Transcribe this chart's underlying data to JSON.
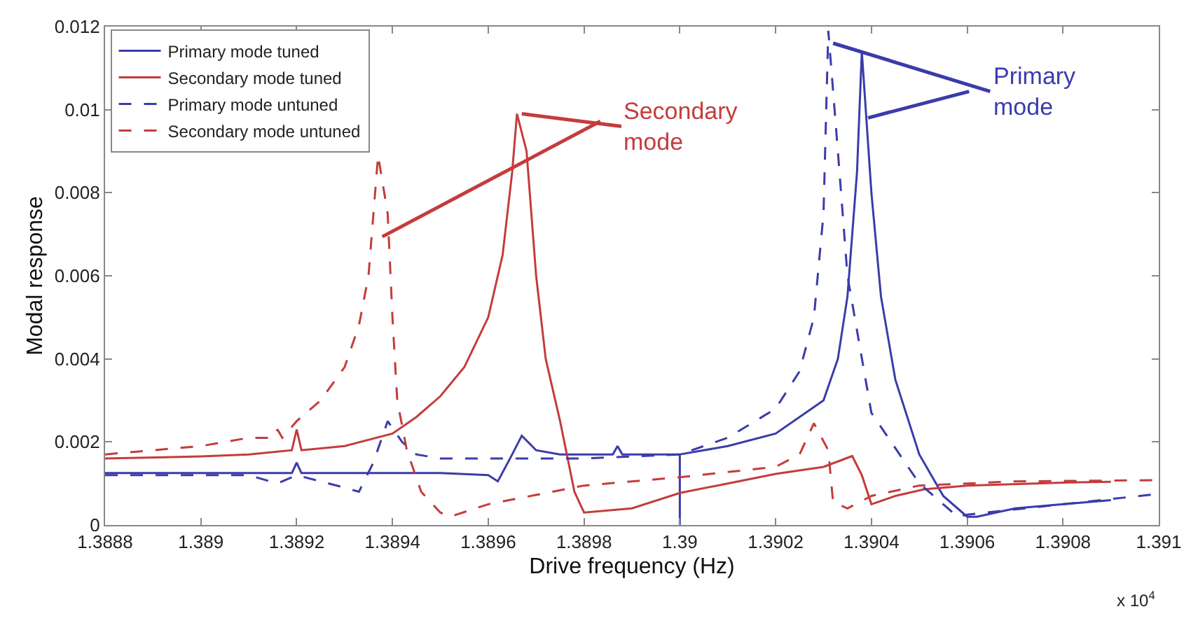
{
  "chart_data": {
    "type": "line",
    "xlabel": "Drive frequency (Hz)",
    "ylabel": "Modal response",
    "xlim": [
      1.3888,
      1.391
    ],
    "xticks": [
      {
        "value": 1.3888,
        "label": "1.3888"
      },
      {
        "value": 1.389,
        "label": "1.389"
      },
      {
        "value": 1.3892,
        "label": "1.3892"
      },
      {
        "value": 1.3894,
        "label": "1.3894"
      },
      {
        "value": 1.3896,
        "label": "1.3896"
      },
      {
        "value": 1.3898,
        "label": "1.3898"
      },
      {
        "value": 1.39,
        "label": "1.39"
      },
      {
        "value": 1.3902,
        "label": "1.3902"
      },
      {
        "value": 1.3904,
        "label": "1.3904"
      },
      {
        "value": 1.3906,
        "label": "1.3906"
      },
      {
        "value": 1.3908,
        "label": "1.3908"
      },
      {
        "value": 1.391,
        "label": "1.391"
      }
    ],
    "ylim": [
      0,
      0.012
    ],
    "yticks": [
      0,
      0.002,
      0.004,
      0.006,
      0.008,
      {
        "value": 0.01,
        "label": "0.01"
      },
      0.012
    ],
    "legend": "top left",
    "marker": "none",
    "annotations": [
      {
        "text": "Secondary mode",
        "x": 1.38967,
        "y": 0.0099
      },
      {
        "text": "Primary mode",
        "x": 1.39032,
        "y": 0.0116
      },
      "x 10$^{4}$"
    ],
    "series": [
      {
        "name": "Primary mode tuned",
        "color": "#3a3caa",
        "line_style": "solid",
        "x": [
          1.3888,
          1.389,
          1.3891,
          1.38919,
          1.3892,
          1.38921,
          1.3893,
          1.3894,
          1.3895,
          1.3896,
          1.38962,
          1.38965,
          1.38967,
          1.3897,
          1.38975,
          1.3898,
          1.38986,
          1.38987,
          1.38988,
          1.3899,
          1.39,
          1.39,
          1.39,
          1.3901,
          1.3902,
          1.3903,
          1.39033,
          1.39035,
          1.39037,
          1.39038,
          1.3904,
          1.39042,
          1.39045,
          1.3905,
          1.39055,
          1.3906,
          1.39062,
          1.3907,
          1.3909
        ],
        "values": [
          0.00125,
          0.00125,
          0.00125,
          0.00125,
          0.0015,
          0.00125,
          0.00125,
          0.00125,
          0.00125,
          0.0012,
          0.00105,
          0.0017,
          0.00215,
          0.0018,
          0.0017,
          0.0017,
          0.0017,
          0.0019,
          0.0017,
          0.0017,
          0.0017,
          0,
          0.0017,
          0.0019,
          0.0022,
          0.003,
          0.004,
          0.0055,
          0.0085,
          0.0114,
          0.008,
          0.0055,
          0.0035,
          0.0017,
          0.0007,
          0.0002,
          0.0002,
          0.0004,
          0.0006
        ]
      },
      {
        "name": "Secondary mode tuned",
        "color": "#c43c3c",
        "line_style": "solid",
        "x": [
          1.3888,
          1.389,
          1.3891,
          1.38919,
          1.3892,
          1.38921,
          1.3893,
          1.3894,
          1.38945,
          1.3895,
          1.38955,
          1.3896,
          1.38963,
          1.38965,
          1.38966,
          1.38968,
          1.3897,
          1.38972,
          1.38975,
          1.38978,
          1.3898,
          1.3899,
          1.39,
          1.3901,
          1.3902,
          1.3903,
          1.39036,
          1.39038,
          1.3904,
          1.39045,
          1.39051,
          1.3906,
          1.3908,
          1.3909
        ],
        "values": [
          0.0016,
          0.00165,
          0.0017,
          0.0018,
          0.0023,
          0.0018,
          0.0019,
          0.0022,
          0.0026,
          0.0031,
          0.0038,
          0.005,
          0.0065,
          0.0085,
          0.0099,
          0.009,
          0.006,
          0.004,
          0.0025,
          0.0008,
          0.0003,
          0.0004,
          0.00077,
          0.001,
          0.00123,
          0.0014,
          0.00166,
          0.0012,
          0.0005,
          0.0007,
          0.00086,
          0.00095,
          0.00102,
          0.00104
        ]
      },
      {
        "name": "Primary mode untuned",
        "color": "#3a3caa",
        "line_style": "dashed",
        "x": [
          1.3888,
          1.389,
          1.3891,
          1.38916,
          1.3892,
          1.3893,
          1.38933,
          1.38936,
          1.38939,
          1.38942,
          1.38945,
          1.3895,
          1.3896,
          1.3898,
          1.39,
          1.3901,
          1.3902,
          1.39025,
          1.39028,
          1.3903,
          1.39031,
          1.39033,
          1.39035,
          1.3904,
          1.3905,
          1.39058,
          1.3906,
          1.3908,
          1.391
        ],
        "values": [
          0.0012,
          0.0012,
          0.0012,
          0.001,
          0.0012,
          0.0009,
          0.0008,
          0.0015,
          0.0025,
          0.002,
          0.0017,
          0.0016,
          0.0016,
          0.0016,
          0.0017,
          0.0021,
          0.0028,
          0.0037,
          0.005,
          0.0075,
          0.0119,
          0.009,
          0.006,
          0.0027,
          0.001,
          0.0002,
          0.00025,
          0.0005,
          0.00075
        ]
      },
      {
        "name": "Secondary mode untuned",
        "color": "#c43c3c",
        "line_style": "dashed",
        "x": [
          1.3888,
          1.389,
          1.3891,
          1.38915,
          1.38916,
          1.38917,
          1.3892,
          1.38925,
          1.3893,
          1.38933,
          1.38935,
          1.38937,
          1.38939,
          1.3894,
          1.38941,
          1.38943,
          1.38946,
          1.3895,
          1.38952,
          1.3896,
          1.3898,
          1.39,
          1.3902,
          1.39025,
          1.39028,
          1.39031,
          1.39032,
          1.39035,
          1.3904,
          1.3905,
          1.3907,
          1.391
        ],
        "values": [
          0.0017,
          0.0019,
          0.0021,
          0.0021,
          0.0023,
          0.0021,
          0.0025,
          0.003,
          0.0038,
          0.0048,
          0.006,
          0.0089,
          0.0075,
          0.005,
          0.003,
          0.0018,
          0.0008,
          0.0003,
          0.0002,
          0.0005,
          0.00095,
          0.00115,
          0.0014,
          0.0017,
          0.00245,
          0.0018,
          0.00055,
          0.0004,
          0.0007,
          0.00095,
          0.00105,
          0.00108
        ]
      }
    ]
  }
}
